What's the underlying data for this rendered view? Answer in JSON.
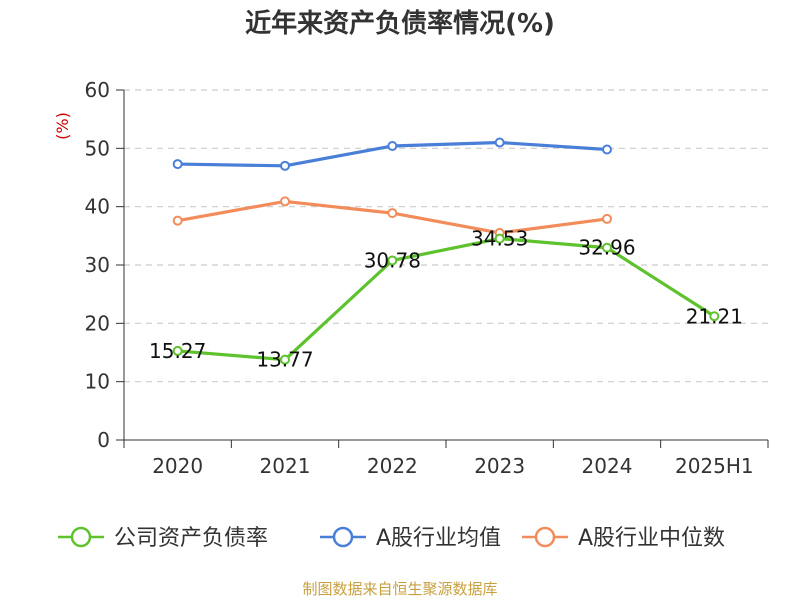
{
  "chart_data": {
    "type": "line",
    "title": "近年来资产负债率情况(%)",
    "unit_label": "(%)",
    "categories": [
      "2020",
      "2021",
      "2022",
      "2023",
      "2024",
      "2025H1"
    ],
    "ylim": [
      0,
      60
    ],
    "yticks": [
      0,
      10,
      20,
      30,
      40,
      50,
      60
    ],
    "grid": true,
    "legend_position": "bottom",
    "series": [
      {
        "name": "公司资产负债率",
        "color": "#5ec22d",
        "values": [
          15.27,
          13.77,
          30.78,
          34.53,
          32.96,
          21.21
        ],
        "labels": [
          "15.27",
          "13.77",
          "30.78",
          "34.53",
          "32.96",
          "21.21"
        ]
      },
      {
        "name": "A股行业均值",
        "color": "#4a7fd8",
        "values": [
          47.3,
          47.0,
          50.4,
          51.0,
          49.8,
          null
        ]
      },
      {
        "name": "A股行业中位数",
        "color": "#f28c5a",
        "values": [
          37.6,
          40.9,
          38.9,
          35.5,
          37.9,
          null
        ]
      }
    ],
    "source": "制图数据来自恒生聚源数据库"
  }
}
